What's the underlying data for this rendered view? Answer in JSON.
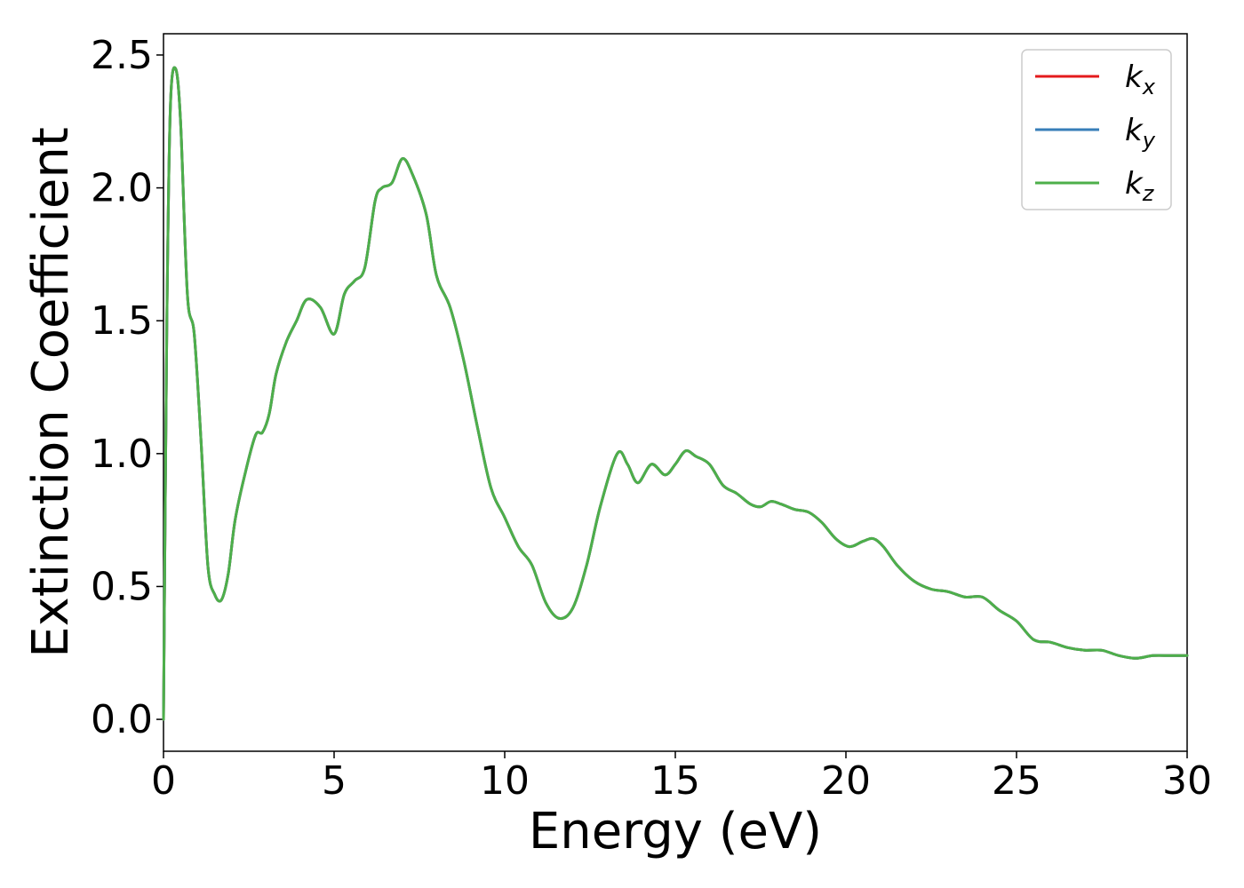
{
  "chart_data": {
    "type": "line",
    "title": "",
    "xlabel": "Energy (eV)",
    "ylabel": "Extinction Coefficient",
    "xlim": [
      0,
      30
    ],
    "ylim": [
      -0.12,
      2.58
    ],
    "xticks": [
      0,
      5,
      10,
      15,
      20,
      25,
      30
    ],
    "xtick_labels": [
      "0",
      "5",
      "10",
      "15",
      "20",
      "25",
      "30"
    ],
    "yticks": [
      0.0,
      0.5,
      1.0,
      1.5,
      2.0,
      2.5
    ],
    "ytick_labels": [
      "0.0",
      "0.5",
      "1.0",
      "1.5",
      "2.0",
      "2.5"
    ],
    "grid": false,
    "legend_position": "top-right",
    "series": [
      {
        "name": "k",
        "subscript": "x",
        "color": "#e41a1c"
      },
      {
        "name": "k",
        "subscript": "y",
        "color": "#377eb8"
      },
      {
        "name": "k",
        "subscript": "z",
        "color": "#4daf4a"
      }
    ],
    "x": [
      0,
      0.1,
      0.2,
      0.35,
      0.5,
      0.7,
      0.9,
      1.1,
      1.3,
      1.5,
      1.7,
      1.9,
      2.1,
      2.4,
      2.7,
      2.9,
      3.1,
      3.3,
      3.6,
      3.9,
      4.2,
      4.6,
      5.0,
      5.3,
      5.6,
      5.9,
      6.2,
      6.4,
      6.7,
      7.0,
      7.3,
      7.7,
      8.0,
      8.4,
      8.8,
      9.2,
      9.6,
      10.0,
      10.4,
      10.8,
      11.2,
      11.6,
      12.0,
      12.4,
      12.8,
      13.3,
      13.6,
      13.9,
      14.3,
      14.7,
      15.0,
      15.3,
      15.6,
      16.0,
      16.4,
      16.8,
      17.2,
      17.5,
      17.8,
      18.1,
      18.5,
      18.9,
      19.3,
      19.7,
      20.1,
      20.5,
      20.8,
      21.1,
      21.5,
      22.0,
      22.5,
      23.0,
      23.5,
      24.0,
      24.5,
      25.0,
      25.5,
      26.0,
      26.5,
      27.0,
      27.5,
      28.0,
      28.5,
      29.0,
      29.5,
      30.0
    ],
    "values": [
      0.0,
      1.5,
      2.3,
      2.45,
      2.25,
      1.6,
      1.45,
      1.05,
      0.58,
      0.47,
      0.45,
      0.55,
      0.75,
      0.93,
      1.07,
      1.08,
      1.15,
      1.3,
      1.42,
      1.5,
      1.58,
      1.55,
      1.45,
      1.6,
      1.65,
      1.7,
      1.95,
      2.0,
      2.02,
      2.11,
      2.05,
      1.9,
      1.67,
      1.55,
      1.35,
      1.1,
      0.87,
      0.76,
      0.65,
      0.58,
      0.44,
      0.38,
      0.42,
      0.58,
      0.8,
      1.0,
      0.96,
      0.89,
      0.96,
      0.92,
      0.96,
      1.01,
      0.99,
      0.96,
      0.88,
      0.85,
      0.81,
      0.8,
      0.82,
      0.81,
      0.79,
      0.78,
      0.74,
      0.68,
      0.65,
      0.67,
      0.68,
      0.65,
      0.58,
      0.52,
      0.49,
      0.48,
      0.46,
      0.46,
      0.41,
      0.37,
      0.3,
      0.29,
      0.27,
      0.26,
      0.26,
      0.24,
      0.23,
      0.24,
      0.24,
      0.24
    ]
  }
}
